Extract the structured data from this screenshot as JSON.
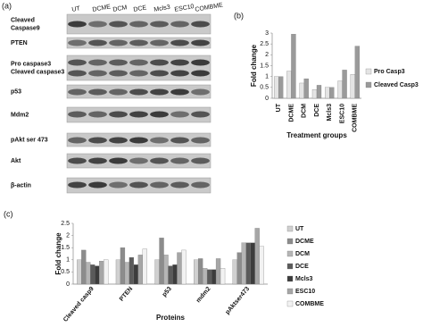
{
  "panels": [
    "(a)",
    "(b)",
    "(c)"
  ],
  "blot": {
    "lanes": [
      "UT",
      "DCME",
      "DCM",
      "DCE",
      "Mcls3",
      "ESC10",
      "COMBME"
    ],
    "rows": [
      [
        "Cleaved",
        "Caspase9"
      ],
      [
        "PTEN"
      ],
      [
        "Pro caspase3",
        "Cleaved caspase3"
      ],
      [
        "p53"
      ],
      [
        "Mdm2"
      ],
      [
        "pAkt ser 473"
      ],
      [
        "Akt"
      ],
      [
        "β-actin"
      ]
    ]
  },
  "chart_data": [
    {
      "type": "bar",
      "y_label": "Fold change",
      "x_label": "Treatment groups",
      "categories": [
        "UT",
        "DCME",
        "DCM",
        "DCE",
        "Mcls3",
        "ESC10",
        "COMBME"
      ],
      "series": [
        {
          "name": "Pro Casp3",
          "color": "#e4e4e4",
          "values": [
            1.0,
            1.25,
            0.7,
            0.4,
            0.5,
            0.8,
            1.1
          ]
        },
        {
          "name": "Cleaved Casp3",
          "color": "#9a9a9a",
          "values": [
            1.0,
            2.95,
            0.9,
            0.6,
            0.5,
            1.3,
            2.4
          ]
        }
      ],
      "ylim": [
        0,
        3
      ],
      "yticks": [
        0,
        0.5,
        1,
        1.5,
        2,
        2.5,
        3
      ],
      "grid": false
    },
    {
      "type": "bar",
      "y_label": "Fold change",
      "x_label": "Proteins",
      "categories": [
        "Cleaved casp9",
        "PTEN",
        "p53",
        "mdm2",
        "pAktser473"
      ],
      "series": [
        {
          "name": "UT",
          "color": "#d0d0d0",
          "values": [
            1.0,
            1.0,
            1.0,
            1.0,
            1.0
          ]
        },
        {
          "name": "DCME",
          "color": "#8c8c8c",
          "values": [
            1.4,
            1.5,
            1.9,
            1.05,
            1.3
          ]
        },
        {
          "name": "DCM",
          "color": "#b5b5b5",
          "values": [
            0.9,
            0.9,
            1.2,
            0.65,
            1.7
          ]
        },
        {
          "name": "DCE",
          "color": "#5a5a5a",
          "values": [
            0.8,
            1.1,
            0.75,
            0.6,
            1.7
          ]
        },
        {
          "name": "Mcls3",
          "color": "#3c3c3c",
          "values": [
            0.75,
            0.8,
            0.8,
            0.6,
            1.7
          ]
        },
        {
          "name": "ESC10",
          "color": "#a6a6a6",
          "values": [
            0.95,
            1.2,
            1.3,
            1.05,
            2.3
          ]
        },
        {
          "name": "COMBME",
          "color": "#f2f2f2",
          "values": [
            1.0,
            1.45,
            1.4,
            0.65,
            1.55
          ]
        }
      ],
      "ylim": [
        0,
        2.5
      ],
      "yticks": [
        0,
        0.5,
        1,
        1.5,
        2,
        2.5
      ],
      "grid": false
    }
  ]
}
